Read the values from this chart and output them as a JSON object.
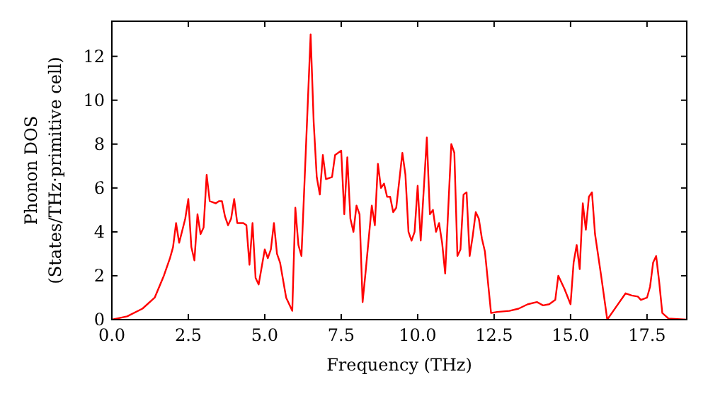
{
  "chart_data": {
    "type": "line",
    "xlabel": "Frequency (THz)",
    "ylabel": "Phonon DOS\n(States/THz·primitive cell)",
    "x": [
      0,
      0.5,
      1.0,
      1.4,
      1.7,
      1.9,
      2.0,
      2.1,
      2.2,
      2.4,
      2.5,
      2.6,
      2.7,
      2.8,
      2.9,
      3.0,
      3.1,
      3.2,
      3.4,
      3.5,
      3.6,
      3.7,
      3.8,
      3.9,
      4.0,
      4.1,
      4.3,
      4.4,
      4.5,
      4.6,
      4.7,
      4.8,
      5.0,
      5.1,
      5.2,
      5.3,
      5.4,
      5.5,
      5.7,
      5.9,
      6.0,
      6.1,
      6.2,
      6.5,
      6.6,
      6.7,
      6.8,
      6.9,
      7.0,
      7.2,
      7.3,
      7.5,
      7.6,
      7.7,
      7.8,
      7.9,
      8.0,
      8.1,
      8.2,
      8.3,
      8.5,
      8.6,
      8.7,
      8.8,
      8.9,
      9.0,
      9.1,
      9.2,
      9.3,
      9.5,
      9.6,
      9.7,
      9.8,
      9.9,
      10.0,
      10.1,
      10.3,
      10.4,
      10.5,
      10.6,
      10.7,
      10.8,
      10.9,
      11.1,
      11.2,
      11.3,
      11.4,
      11.5,
      11.6,
      11.7,
      11.8,
      11.9,
      12.0,
      12.1,
      12.2,
      12.4,
      12.6,
      13.0,
      13.3,
      13.6,
      13.9,
      14.1,
      14.3,
      14.5,
      14.6,
      14.8,
      15.0,
      15.1,
      15.2,
      15.3,
      15.4,
      15.5,
      15.6,
      15.7,
      15.8,
      16.0,
      16.2,
      16.5,
      16.8,
      17.0,
      17.2,
      17.3,
      17.5,
      17.6,
      17.7,
      17.8,
      17.9,
      18.0,
      18.2,
      18.8
    ],
    "series": [
      {
        "color": "#ff0000",
        "values": [
          0,
          0.15,
          0.5,
          1.0,
          2.0,
          2.8,
          3.3,
          4.4,
          3.5,
          4.6,
          5.5,
          3.3,
          2.7,
          4.8,
          3.9,
          4.2,
          6.6,
          5.4,
          5.3,
          5.4,
          5.4,
          4.7,
          4.3,
          4.6,
          5.5,
          4.4,
          4.4,
          4.3,
          2.5,
          4.4,
          1.9,
          1.6,
          3.2,
          2.8,
          3.2,
          4.4,
          3.0,
          2.6,
          1.0,
          0.4,
          5.1,
          3.4,
          2.9,
          13.0,
          9.0,
          6.5,
          5.7,
          7.5,
          6.4,
          6.5,
          7.5,
          7.7,
          4.8,
          7.4,
          4.6,
          4.0,
          5.2,
          4.8,
          0.8,
          2.2,
          5.2,
          4.3,
          7.1,
          6.0,
          6.2,
          5.6,
          5.6,
          4.9,
          5.1,
          7.6,
          6.6,
          4.0,
          3.6,
          4.0,
          6.1,
          3.6,
          8.3,
          4.8,
          5.0,
          4.0,
          4.4,
          3.5,
          2.1,
          8.0,
          7.6,
          2.9,
          3.2,
          5.7,
          5.8,
          2.9,
          3.8,
          4.9,
          4.6,
          3.7,
          3.1,
          0.3,
          0.35,
          0.4,
          0.5,
          0.7,
          0.8,
          0.65,
          0.7,
          0.9,
          2.0,
          1.4,
          0.7,
          2.6,
          3.4,
          2.3,
          5.3,
          4.1,
          5.6,
          5.8,
          3.9,
          2.0,
          0,
          0.6,
          1.2,
          1.1,
          1.05,
          0.9,
          1.0,
          1.5,
          2.6,
          2.9,
          1.7,
          0.3,
          0.05,
          0
        ]
      }
    ],
    "xlim": [
      0,
      18.8
    ],
    "ylim": [
      0,
      13.6
    ],
    "xticks": [
      {
        "value": 0,
        "label": "0.0"
      },
      {
        "value": 2.5,
        "label": "2.5"
      },
      {
        "value": 5,
        "label": "5.0"
      },
      {
        "value": 7.5,
        "label": "7.5"
      },
      {
        "value": 10,
        "label": "10.0"
      },
      {
        "value": 12.5,
        "label": "12.5"
      },
      {
        "value": 15,
        "label": "15.0"
      },
      {
        "value": 17.5,
        "label": "17.5"
      }
    ],
    "yticks": [
      0,
      2,
      4,
      6,
      8,
      10,
      12
    ],
    "grid": false,
    "marker": "none",
    "line_style": "solid"
  }
}
